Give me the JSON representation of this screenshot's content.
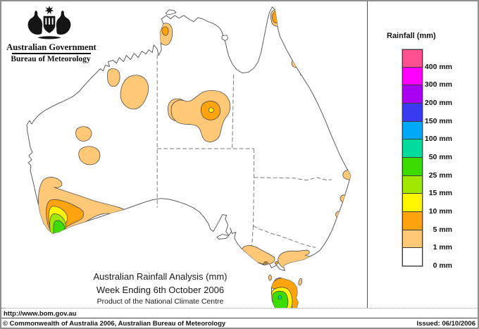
{
  "header": {
    "government": "Australian Government",
    "bureau": "Bureau of Meteorology"
  },
  "title": {
    "line1": "Australian Rainfall Analysis (mm)",
    "line2": "Week Ending 6th October 2006",
    "line3": "Product of the National Climate Centre"
  },
  "legend": {
    "title": "Rainfall (mm)",
    "entries": [
      {
        "color": "#FF5090",
        "label": "400 mm"
      },
      {
        "color": "#FF00FF",
        "label": "300 mm"
      },
      {
        "color": "#A800F0",
        "label": "200 mm"
      },
      {
        "color": "#3A3AF0",
        "label": "150 mm"
      },
      {
        "color": "#00A8F8",
        "label": "100 mm"
      },
      {
        "color": "#00DC9C",
        "label": "50 mm"
      },
      {
        "color": "#3CDC00",
        "label": "25 mm"
      },
      {
        "color": "#A0E800",
        "label": "15 mm"
      },
      {
        "color": "#FFF500",
        "label": "10 mm"
      },
      {
        "color": "#FFA30F",
        "label": "5 mm"
      },
      {
        "color": "#FFC877",
        "label": "1 mm"
      },
      {
        "color": "#FFFFFF",
        "label": "0 mm"
      }
    ]
  },
  "map": {
    "palette": {
      "mm1": "#FFC877",
      "mm5": "#FFA30F",
      "mm10": "#FFF500",
      "mm15": "#A0E800",
      "mm25": "#3CDC00",
      "mm50": "#00DC9C"
    }
  },
  "footer": {
    "url": "http://www.bom.gov.au",
    "copyright": "© Commonwealth of Australia 2006, Australian Bureau of Meteorology",
    "issued": "Issued: 06/10/2006"
  }
}
